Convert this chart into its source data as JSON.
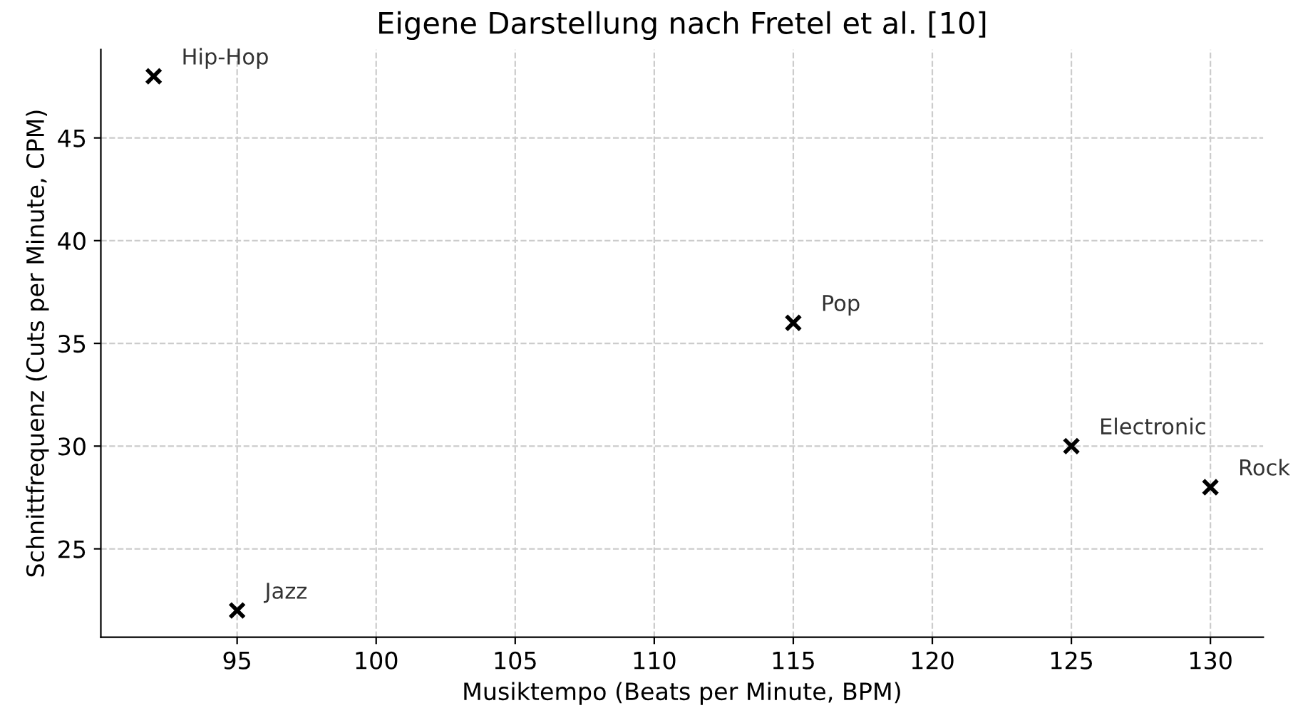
{
  "chart_data": {
    "type": "scatter",
    "title": "Eigene Darstellung nach Fretel et al. [10]",
    "xlabel": "Musiktempo (Beats per Minute, BPM)",
    "ylabel": "Schnittfrequenz (Cuts per Minute, CPM)",
    "series": [
      {
        "color": "#000000",
        "x": [
          92,
          95,
          115,
          125,
          130
        ],
        "values": [
          48,
          22,
          36,
          30,
          28
        ]
      }
    ],
    "annotations": [
      {
        "text": "Hip-Hop",
        "x": 92,
        "y": 48
      },
      {
        "text": "Jazz",
        "x": 95,
        "y": 22
      },
      {
        "text": "Pop",
        "x": 115,
        "y": 36
      },
      {
        "text": "Electronic",
        "x": 125,
        "y": 30
      },
      {
        "text": "Rock",
        "x": 130,
        "y": 28
      }
    ],
    "xlim": [
      90.1,
      131.9
    ],
    "ylim": [
      20.7,
      49.3
    ],
    "xticks": [
      95,
      100,
      105,
      110,
      115,
      120,
      125,
      130
    ],
    "yticks": [
      25,
      30,
      35,
      40,
      45
    ],
    "grid": true,
    "marker": "cross"
  }
}
